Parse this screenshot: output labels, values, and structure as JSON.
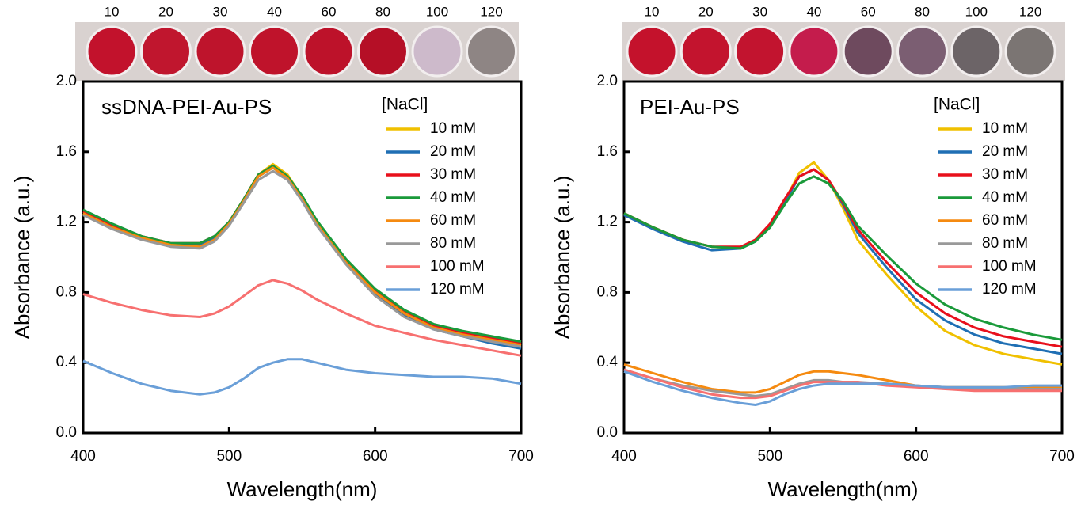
{
  "chart_data": [
    {
      "type": "line",
      "title": "ssDNA-PEI-Au-PS",
      "x_label": "Wavelength(nm)",
      "y_label": "Absorbance (a.u.)",
      "legend_title": "[NaCl]",
      "legend": "upper right",
      "wells": {
        "labels": [
          "10",
          "20",
          "30",
          "40",
          "60",
          "80",
          "100",
          "120"
        ],
        "colors": [
          "#c2122c",
          "#c0162e",
          "#be142c",
          "#bf132b",
          "#bd122a",
          "#b50f26",
          "#cdbacb",
          "#8e8584"
        ]
      },
      "x": [
        400,
        420,
        440,
        460,
        480,
        490,
        500,
        510,
        520,
        530,
        540,
        550,
        560,
        580,
        600,
        620,
        640,
        660,
        680,
        700
      ],
      "xlim": [
        400,
        700
      ],
      "xticks": [
        400,
        500,
        600,
        700
      ],
      "ylim": [
        0,
        2
      ],
      "yticks": [
        {
          "value": 0,
          "label": "0.0"
        },
        {
          "value": 0.4,
          "label": "0.4"
        },
        {
          "value": 0.8,
          "label": "0.8"
        },
        {
          "value": 1.2,
          "label": "1.2"
        },
        {
          "value": 1.6,
          "label": "1.6"
        },
        {
          "value": 2,
          "label": "2.0"
        }
      ],
      "series": [
        {
          "name": "10 mM",
          "color": "#f0c000",
          "values": [
            1.25,
            1.17,
            1.11,
            1.07,
            1.07,
            1.11,
            1.2,
            1.33,
            1.47,
            1.53,
            1.47,
            1.34,
            1.2,
            0.98,
            0.8,
            0.68,
            0.6,
            0.56,
            0.53,
            0.5
          ]
        },
        {
          "name": "20 mM",
          "color": "#1f6fb4",
          "values": [
            1.25,
            1.17,
            1.11,
            1.07,
            1.07,
            1.11,
            1.19,
            1.32,
            1.46,
            1.51,
            1.45,
            1.33,
            1.19,
            0.97,
            0.79,
            0.67,
            0.59,
            0.55,
            0.51,
            0.48
          ]
        },
        {
          "name": "30 mM",
          "color": "#e8101c",
          "values": [
            1.26,
            1.18,
            1.12,
            1.08,
            1.08,
            1.12,
            1.2,
            1.33,
            1.47,
            1.52,
            1.46,
            1.34,
            1.2,
            0.98,
            0.81,
            0.69,
            0.61,
            0.57,
            0.54,
            0.51
          ]
        },
        {
          "name": "40 mM",
          "color": "#1a9a3a",
          "values": [
            1.27,
            1.19,
            1.12,
            1.08,
            1.08,
            1.12,
            1.2,
            1.33,
            1.47,
            1.52,
            1.46,
            1.35,
            1.21,
            0.99,
            0.82,
            0.7,
            0.62,
            0.58,
            0.55,
            0.52
          ]
        },
        {
          "name": "60 mM",
          "color": "#f58a10",
          "values": [
            1.25,
            1.17,
            1.11,
            1.07,
            1.06,
            1.1,
            1.19,
            1.32,
            1.46,
            1.51,
            1.45,
            1.33,
            1.19,
            0.97,
            0.8,
            0.68,
            0.6,
            0.56,
            0.53,
            0.5
          ]
        },
        {
          "name": "80 mM",
          "color": "#999999",
          "values": [
            1.24,
            1.16,
            1.1,
            1.06,
            1.05,
            1.09,
            1.18,
            1.31,
            1.44,
            1.49,
            1.44,
            1.32,
            1.18,
            0.96,
            0.78,
            0.66,
            0.59,
            0.55,
            0.52,
            0.49
          ]
        },
        {
          "name": "100 mM",
          "color": "#f77070",
          "values": [
            0.79,
            0.74,
            0.7,
            0.67,
            0.66,
            0.68,
            0.72,
            0.78,
            0.84,
            0.87,
            0.85,
            0.81,
            0.76,
            0.68,
            0.61,
            0.57,
            0.53,
            0.5,
            0.47,
            0.44
          ]
        },
        {
          "name": "120 mM",
          "color": "#6a9fd8",
          "values": [
            0.41,
            0.34,
            0.28,
            0.24,
            0.22,
            0.23,
            0.26,
            0.31,
            0.37,
            0.4,
            0.42,
            0.42,
            0.4,
            0.36,
            0.34,
            0.33,
            0.32,
            0.32,
            0.31,
            0.28
          ]
        }
      ]
    },
    {
      "type": "line",
      "title": "PEI-Au-PS",
      "x_label": "Wavelength(nm)",
      "y_label": "Absorbance (a.u.)",
      "legend_title": "[NaCl]",
      "legend": "upper right",
      "wells": {
        "labels": [
          "10",
          "20",
          "30",
          "40",
          "60",
          "80",
          "100",
          "120"
        ],
        "colors": [
          "#c4122c",
          "#c3142e",
          "#c2142f",
          "#c41c4c",
          "#6e4a5e",
          "#7b5e72",
          "#6c6467",
          "#7b7573"
        ]
      },
      "x": [
        400,
        420,
        440,
        460,
        480,
        490,
        500,
        510,
        520,
        530,
        540,
        550,
        560,
        580,
        600,
        620,
        640,
        660,
        680,
        700
      ],
      "xlim": [
        400,
        700
      ],
      "xticks": [
        400,
        500,
        600,
        700
      ],
      "ylim": [
        0,
        2
      ],
      "yticks": [
        {
          "value": 0,
          "label": "0.0"
        },
        {
          "value": 0.4,
          "label": "0.4"
        },
        {
          "value": 0.8,
          "label": "0.8"
        },
        {
          "value": 1.2,
          "label": "1.2"
        },
        {
          "value": 1.6,
          "label": "1.6"
        },
        {
          "value": 2,
          "label": "2.0"
        }
      ],
      "series": [
        {
          "name": "10 mM",
          "color": "#f0c000",
          "values": [
            1.25,
            1.17,
            1.1,
            1.06,
            1.05,
            1.1,
            1.18,
            1.32,
            1.48,
            1.54,
            1.44,
            1.28,
            1.1,
            0.9,
            0.72,
            0.58,
            0.5,
            0.45,
            0.42,
            0.39
          ]
        },
        {
          "name": "20 mM",
          "color": "#1f6fb4",
          "values": [
            1.24,
            1.16,
            1.09,
            1.04,
            1.05,
            1.09,
            1.18,
            1.31,
            1.46,
            1.5,
            1.44,
            1.3,
            1.14,
            0.94,
            0.76,
            0.64,
            0.56,
            0.51,
            0.48,
            0.45
          ]
        },
        {
          "name": "30 mM",
          "color": "#e8101c",
          "values": [
            1.25,
            1.17,
            1.1,
            1.06,
            1.06,
            1.1,
            1.19,
            1.33,
            1.46,
            1.5,
            1.44,
            1.31,
            1.16,
            0.97,
            0.8,
            0.68,
            0.6,
            0.55,
            0.52,
            0.49
          ]
        },
        {
          "name": "40 mM",
          "color": "#1a9a3a",
          "values": [
            1.25,
            1.17,
            1.1,
            1.06,
            1.05,
            1.09,
            1.17,
            1.3,
            1.42,
            1.46,
            1.42,
            1.32,
            1.18,
            1.01,
            0.85,
            0.73,
            0.65,
            0.6,
            0.56,
            0.53
          ]
        },
        {
          "name": "60 mM",
          "color": "#f58a10",
          "values": [
            0.39,
            0.34,
            0.29,
            0.25,
            0.23,
            0.23,
            0.25,
            0.29,
            0.33,
            0.35,
            0.35,
            0.34,
            0.33,
            0.3,
            0.27,
            0.26,
            0.26,
            0.26,
            0.26,
            0.26
          ]
        },
        {
          "name": "80 mM",
          "color": "#999999",
          "values": [
            0.36,
            0.31,
            0.27,
            0.24,
            0.22,
            0.21,
            0.22,
            0.25,
            0.28,
            0.3,
            0.3,
            0.29,
            0.29,
            0.28,
            0.27,
            0.26,
            0.25,
            0.25,
            0.25,
            0.25
          ]
        },
        {
          "name": "100 mM",
          "color": "#f77070",
          "values": [
            0.36,
            0.31,
            0.26,
            0.22,
            0.2,
            0.2,
            0.21,
            0.24,
            0.27,
            0.29,
            0.29,
            0.29,
            0.29,
            0.27,
            0.26,
            0.25,
            0.24,
            0.24,
            0.24,
            0.24
          ]
        },
        {
          "name": "120 mM",
          "color": "#6a9fd8",
          "values": [
            0.35,
            0.29,
            0.24,
            0.2,
            0.17,
            0.16,
            0.18,
            0.22,
            0.25,
            0.27,
            0.28,
            0.28,
            0.28,
            0.28,
            0.27,
            0.26,
            0.26,
            0.26,
            0.27,
            0.27
          ]
        }
      ]
    }
  ]
}
